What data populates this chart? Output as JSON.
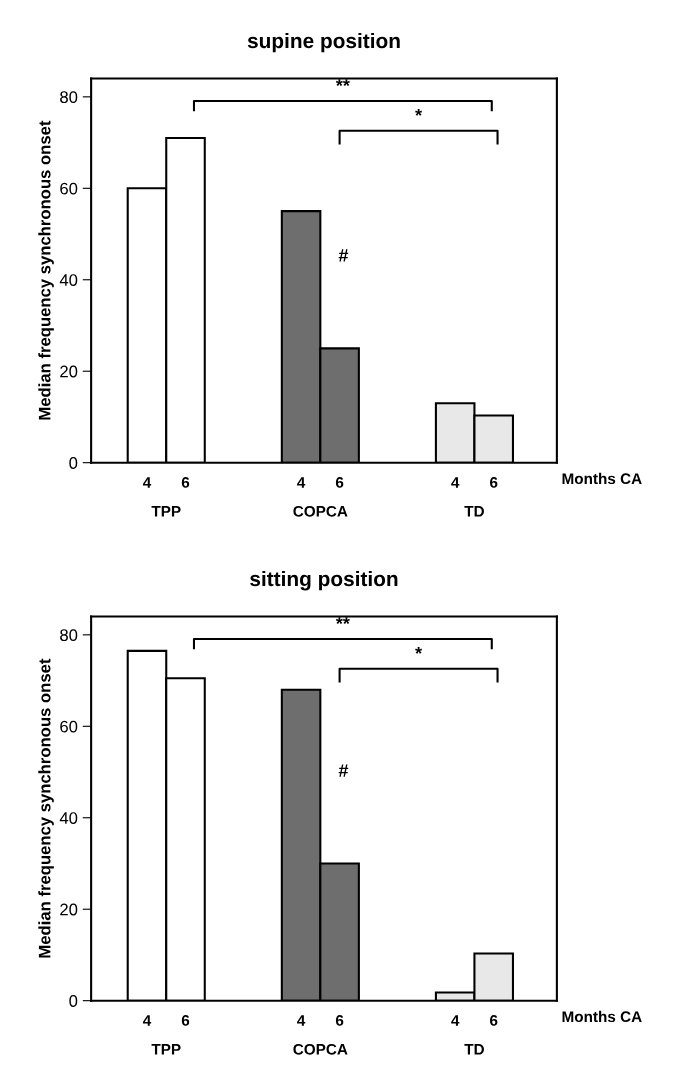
{
  "chart_data": [
    {
      "type": "bar",
      "title": "supine position",
      "ylabel": "Median frequency synchronous onset",
      "xlabel": "Months CA",
      "categories": [
        "4",
        "6",
        null,
        null,
        "4",
        "6",
        null,
        null,
        "4",
        "6"
      ],
      "values": [
        60,
        71,
        null,
        null,
        55,
        25,
        null,
        null,
        13,
        10.3
      ],
      "colors": [
        "#ffffff",
        "#ffffff",
        null,
        null,
        "#6e6e6e",
        "#6e6e6e",
        null,
        null,
        "#e8e8e8",
        "#e8e8e8"
      ],
      "ylim": [
        0,
        84
      ],
      "yticks": [
        0,
        20,
        40,
        60,
        80
      ],
      "grid": false,
      "legend": false,
      "annotations": [
        "TPP",
        "COPCA",
        "TD",
        "**",
        "*",
        "#"
      ]
    },
    {
      "type": "bar",
      "title": "sitting position",
      "ylabel": "Median frequency synchronous onset",
      "xlabel": "Months CA",
      "categories": [
        "4",
        "6",
        null,
        null,
        "4",
        "6",
        null,
        null,
        "4",
        "6"
      ],
      "values": [
        76.5,
        70.5,
        null,
        null,
        68,
        30,
        null,
        null,
        1.8,
        10.3
      ],
      "colors": [
        "#ffffff",
        "#ffffff",
        null,
        null,
        "#6e6e6e",
        "#6e6e6e",
        null,
        null,
        "#e8e8e8",
        "#e8e8e8"
      ],
      "ylim": [
        0,
        84
      ],
      "yticks": [
        0,
        20,
        40,
        60,
        80
      ],
      "grid": false,
      "legend": false,
      "annotations": [
        "TPP",
        "COPCA",
        "TD",
        "**",
        "*",
        "#"
      ]
    }
  ]
}
